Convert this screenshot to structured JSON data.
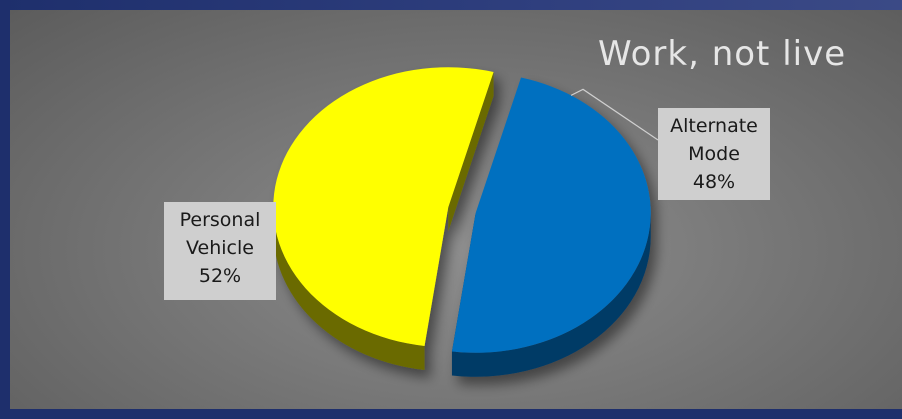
{
  "chart_data": {
    "type": "pie",
    "title": "Work, not live",
    "slices": [
      {
        "name": "Alternate Mode",
        "name_lines": [
          "Alternate",
          "Mode"
        ],
        "value": 48,
        "label": "48%",
        "color": "#0070c0",
        "side_color": "#003a66"
      },
      {
        "name": "Personal Vehicle",
        "name_lines": [
          "Personal",
          "Vehicle"
        ],
        "value": 52,
        "label": "52%",
        "color": "#ffff00",
        "side_color": "#6b6b00"
      }
    ],
    "exploded": true,
    "style": "3d"
  }
}
